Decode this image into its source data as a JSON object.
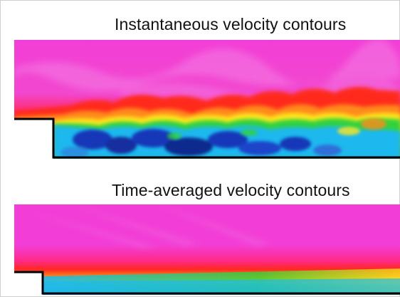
{
  "panels": [
    {
      "title": "Instantaneous velocity contours"
    },
    {
      "title": "Time-averaged velocity contours"
    }
  ],
  "colors": {
    "freestream": "#f23ed6",
    "shear_layer_red": "#ff2a1f",
    "orange": "#ff8a1a",
    "yellow": "#ffe81a",
    "green": "#32d23a",
    "cyan": "#1fb8ee",
    "blue": "#1538b8",
    "wall": "#000000"
  }
}
